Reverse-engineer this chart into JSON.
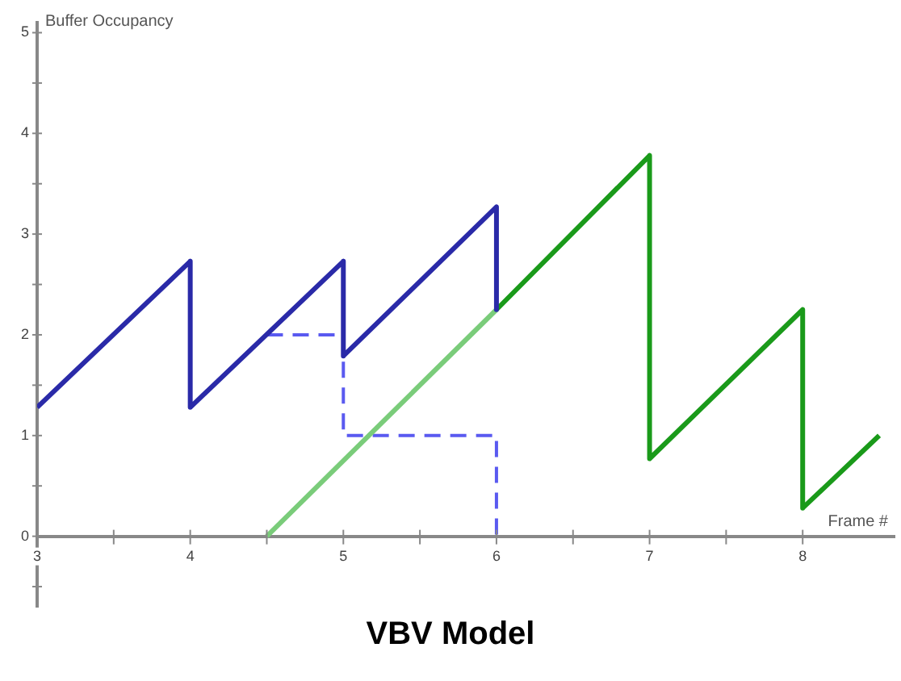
{
  "chart_data": {
    "type": "line",
    "title": "VBV Model",
    "xlabel": "Frame #",
    "ylabel": "Buffer Occupancy",
    "xlim": [
      3,
      8.6
    ],
    "ylim": [
      -0.7,
      5.1
    ],
    "xticks": [
      3,
      {
        "value": 3.5,
        "label": null
      },
      4,
      {
        "value": 4.5,
        "label": null
      },
      5,
      {
        "value": 5.5,
        "label": null
      },
      6,
      {
        "value": 6.5,
        "label": null
      },
      7,
      {
        "value": 7.5,
        "label": null
      },
      8
    ],
    "yticks": [
      {
        "value": -0.5,
        "label": null
      },
      0,
      {
        "value": 0.5,
        "label": null
      },
      1,
      {
        "value": 1.5,
        "label": null
      },
      2,
      {
        "value": 2.5,
        "label": null
      },
      3,
      {
        "value": 3.5,
        "label": null
      },
      4,
      {
        "value": 4.5,
        "label": null
      },
      5
    ],
    "grid": false,
    "legend": false,
    "marker": "none",
    "series": [
      {
        "color": "#2a2aa8",
        "line_style": "solid",
        "x": [
          3,
          4,
          4,
          5,
          5,
          6,
          6
        ],
        "values": [
          1.28,
          2.73,
          1.28,
          2.73,
          1.79,
          3.27,
          2.25
        ]
      },
      {
        "color": "#1a9a1a",
        "line_style": "solid",
        "x": [
          6,
          7,
          7,
          8,
          8,
          8.5
        ],
        "values": [
          2.25,
          3.78,
          0.77,
          2.25,
          0.28,
          1.0
        ]
      },
      {
        "color": "#7acc7a",
        "line_style": "solid",
        "x": [
          4.5,
          6
        ],
        "values": [
          0,
          2.25
        ]
      },
      {
        "color": "#5a5af0",
        "line_style": "dashed",
        "x": [
          4.5,
          5,
          5,
          6,
          6
        ],
        "values": [
          2,
          2,
          1,
          1,
          0
        ]
      }
    ]
  }
}
